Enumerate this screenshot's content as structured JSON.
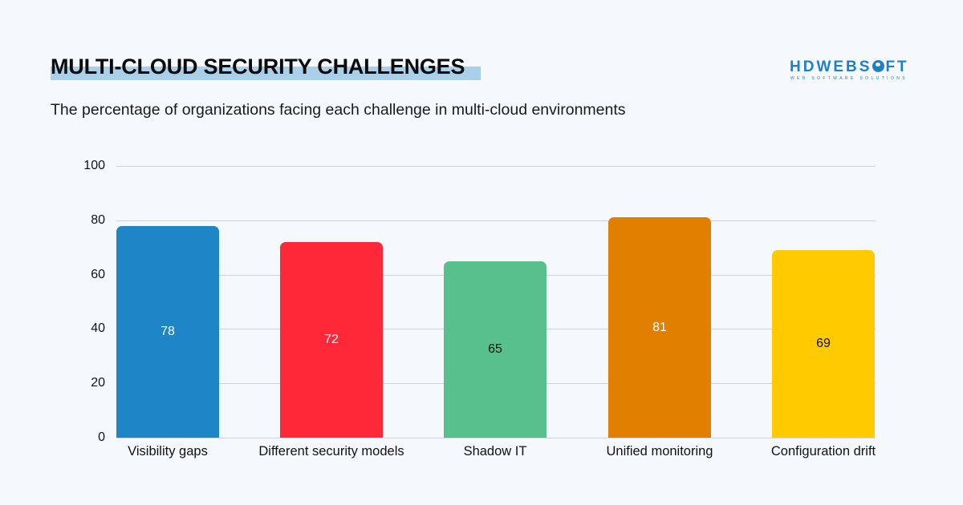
{
  "header": {
    "title": "MULTI-CLOUD SECURITY CHALLENGES",
    "subtitle": "The percentage of organizations facing each challenge in multi-cloud environments"
  },
  "logo": {
    "main_pre": "HDWEBS",
    "main_post": "FT",
    "tagline": "WEB SOFTWARE SOLUTIONS",
    "color": "#1d7fc4"
  },
  "chart_data": {
    "type": "bar",
    "title": "MULTI-CLOUD SECURITY CHALLENGES",
    "subtitle": "The percentage of organizations facing each challenge in multi-cloud environments",
    "categories": [
      "Visibility gaps",
      "Different security models",
      "Shadow IT",
      "Unified monitoring",
      "Configuration drift"
    ],
    "values": [
      78,
      72,
      65,
      81,
      69
    ],
    "colors": [
      "#1e86c6",
      "#fe2838",
      "#57c08c",
      "#e07f00",
      "#ffcb00"
    ],
    "label_colors": [
      "#ffffff",
      "#ffffff",
      "#111111",
      "#ffffff",
      "#111111"
    ],
    "xlabel": "",
    "ylabel": "",
    "ylim": [
      0,
      100
    ],
    "yticks": [
      0,
      20,
      40,
      60,
      80,
      100
    ],
    "grid": true,
    "legend": "none",
    "data_labels": "inside-center"
  }
}
